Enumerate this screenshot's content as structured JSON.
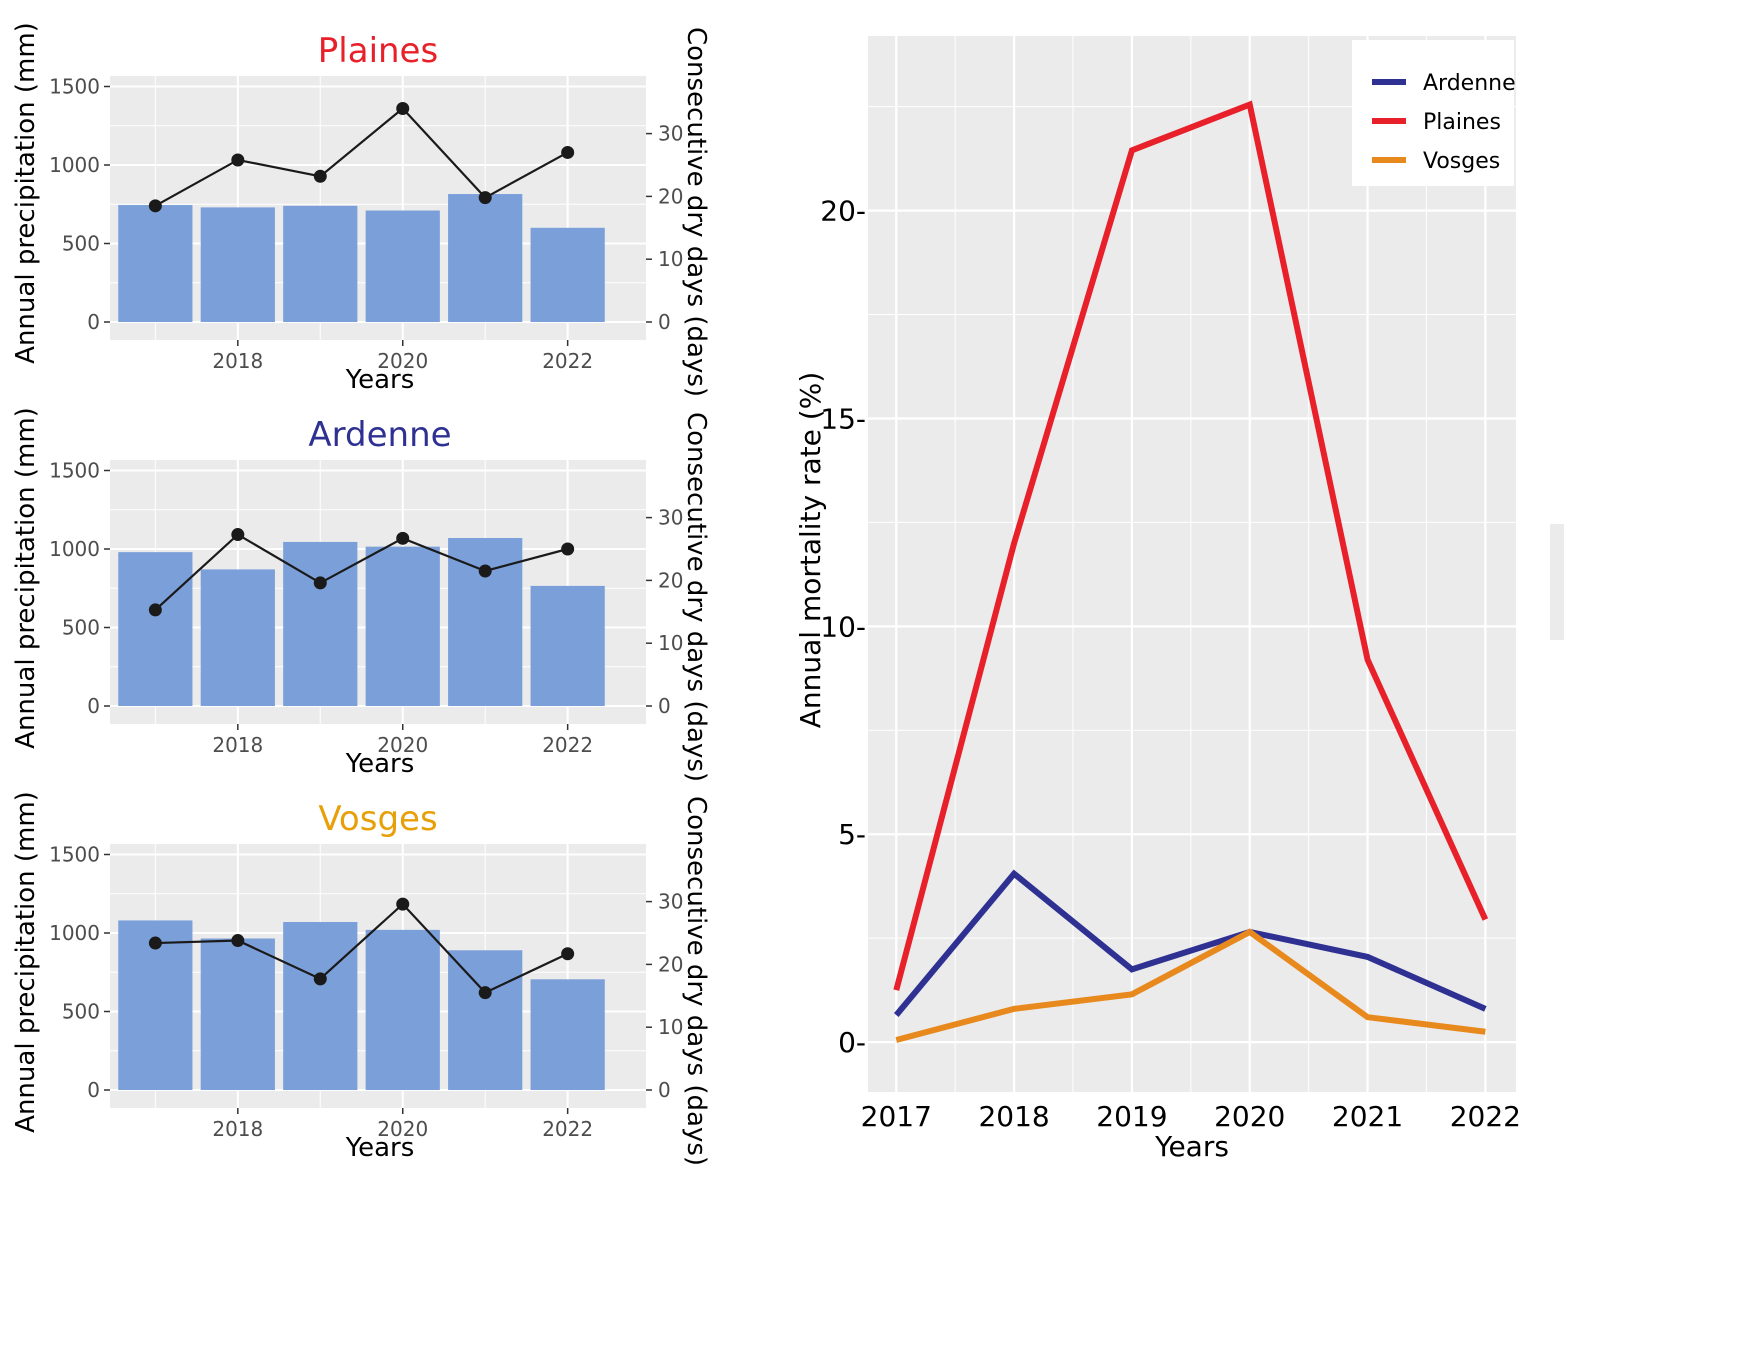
{
  "chart_data": [
    {
      "type": "bar",
      "title": "Plaines",
      "title_color": "#e8202a",
      "xlabel": "Years",
      "ylabel": "Annual precipitation (mm)",
      "y2label": "Consecutive dry days (days)",
      "categories": [
        2017,
        2018,
        2019,
        2020,
        2021,
        2022
      ],
      "x_ticks": [
        2018,
        2020,
        2022
      ],
      "ylim": [
        0,
        1500
      ],
      "y_ticks": [
        0,
        500,
        1000,
        1500
      ],
      "y2lim": [
        0,
        37.5
      ],
      "y2_ticks": [
        0,
        10,
        20,
        30
      ],
      "bar_color": "#7b9fd9",
      "line_color": "#1a1a1a",
      "grid": true,
      "series": [
        {
          "name": "Annual precipitation (mm)",
          "axis": "left",
          "mark": "bar",
          "values": [
            745,
            730,
            740,
            710,
            815,
            600
          ]
        },
        {
          "name": "Consecutive dry days (days)",
          "axis": "right",
          "mark": "line-points",
          "values": [
            18.5,
            25.8,
            23.2,
            34.0,
            19.8,
            27.0
          ]
        }
      ]
    },
    {
      "type": "bar",
      "title": "Ardenne",
      "title_color": "#2e3192",
      "xlabel": "Years",
      "ylabel": "Annual precipitation (mm)",
      "y2label": "Consecutive dry days (days)",
      "categories": [
        2017,
        2018,
        2019,
        2020,
        2021,
        2022
      ],
      "x_ticks": [
        2018,
        2020,
        2022
      ],
      "ylim": [
        0,
        1500
      ],
      "y_ticks": [
        0,
        500,
        1000,
        1500
      ],
      "y2lim": [
        0,
        37.5
      ],
      "y2_ticks": [
        0,
        10,
        20,
        30
      ],
      "bar_color": "#7b9fd9",
      "line_color": "#1a1a1a",
      "grid": true,
      "series": [
        {
          "name": "Annual precipitation (mm)",
          "axis": "left",
          "mark": "bar",
          "values": [
            980,
            870,
            1045,
            1015,
            1070,
            765
          ]
        },
        {
          "name": "Consecutive dry days (days)",
          "axis": "right",
          "mark": "line-points",
          "values": [
            15.3,
            27.3,
            19.6,
            26.7,
            21.5,
            25.0
          ]
        }
      ]
    },
    {
      "type": "bar",
      "title": "Vosges",
      "title_color": "#e8a008",
      "xlabel": "Years",
      "ylabel": "Annual precipitation (mm)",
      "y2label": "Consecutive dry days (days)",
      "categories": [
        2017,
        2018,
        2019,
        2020,
        2021,
        2022
      ],
      "x_ticks": [
        2018,
        2020,
        2022
      ],
      "ylim": [
        0,
        1500
      ],
      "y_ticks": [
        0,
        500,
        1000,
        1500
      ],
      "y2lim": [
        0,
        37.5
      ],
      "y2_ticks": [
        0,
        10,
        20,
        30
      ],
      "bar_color": "#7b9fd9",
      "line_color": "#1a1a1a",
      "grid": true,
      "series": [
        {
          "name": "Annual precipitation (mm)",
          "axis": "left",
          "mark": "bar",
          "values": [
            1080,
            965,
            1070,
            1020,
            890,
            705
          ]
        },
        {
          "name": "Consecutive dry days (days)",
          "axis": "right",
          "mark": "line-points",
          "values": [
            23.4,
            23.8,
            17.7,
            29.6,
            15.5,
            21.7
          ]
        }
      ]
    },
    {
      "type": "line",
      "title": "",
      "xlabel": "Years",
      "ylabel": "Annual mortality rate (%)",
      "x": [
        2017,
        2018,
        2019,
        2020,
        2021,
        2022
      ],
      "x_ticks": [
        2017,
        2018,
        2019,
        2020,
        2021,
        2022
      ],
      "ylim": [
        -1.2,
        24.2
      ],
      "y_ticks": [
        0,
        5,
        10,
        15,
        20
      ],
      "y_tick_labels": [
        "0-",
        "5-",
        "10-",
        "15-",
        "20-"
      ],
      "grid": true,
      "legend": "top-right",
      "series": [
        {
          "name": "Ardenne",
          "color": "#2e3192",
          "values": [
            0.65,
            4.05,
            1.75,
            2.65,
            2.05,
            0.8
          ]
        },
        {
          "name": "Plaines",
          "color": "#e8202a",
          "values": [
            1.25,
            12.0,
            21.45,
            22.55,
            9.2,
            2.95
          ]
        },
        {
          "name": "Vosges",
          "color": "#e8891e",
          "values": [
            0.05,
            0.8,
            1.15,
            2.65,
            0.6,
            0.25
          ]
        }
      ]
    }
  ]
}
